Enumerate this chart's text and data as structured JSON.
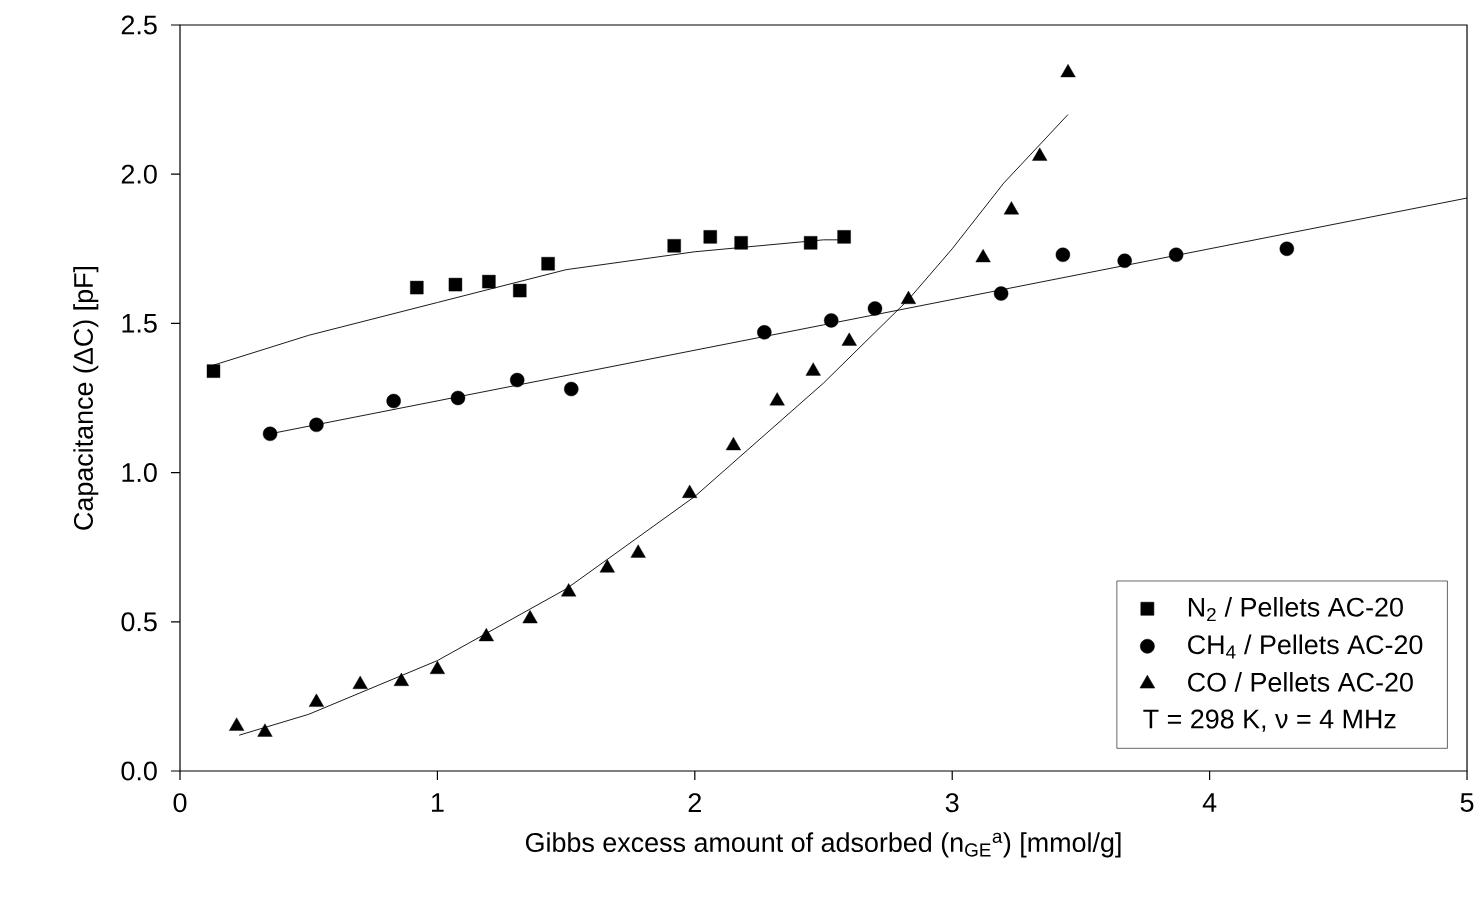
{
  "chart_data": {
    "type": "scatter",
    "xlabel": "Gibbs excess amount of adsorbed  (n$_{GE}$$^{a}$)  [mmol/g]",
    "ylabel": "Capacitance  (ΔC)  [pF]",
    "xlim": [
      0,
      5
    ],
    "ylim": [
      0,
      2.5
    ],
    "xticks": [
      0,
      1,
      2,
      3,
      4,
      5
    ],
    "yticks": [
      {
        "value": 0,
        "label": "0.0"
      },
      {
        "value": 0.5,
        "label": "0.5"
      },
      {
        "value": 1,
        "label": "1.0"
      },
      {
        "value": 1.5,
        "label": "1.5"
      },
      {
        "value": 2,
        "label": "2.0"
      },
      {
        "value": 2.5,
        "label": "2.5"
      }
    ],
    "grid": false,
    "legend": "bottom right",
    "annotations": [
      "T = 298 K,  ν = 4 MHz"
    ],
    "series": [
      {
        "name": "N$_{2}$  / Pellets AC-20",
        "marker": "square",
        "color": "#000000",
        "x": [
          0.13,
          0.92,
          1.07,
          1.2,
          1.32,
          1.43,
          1.92,
          2.06,
          2.18,
          2.45,
          2.58
        ],
        "values": [
          1.34,
          1.62,
          1.63,
          1.64,
          1.61,
          1.7,
          1.76,
          1.79,
          1.77,
          1.77,
          1.79
        ]
      },
      {
        "name": "CH$_{4}$ / Pellets AC-20",
        "marker": "circle",
        "color": "#000000",
        "x": [
          0.35,
          0.53,
          0.83,
          1.08,
          1.31,
          1.52,
          2.27,
          2.53,
          2.7,
          3.19,
          3.43,
          3.67,
          3.87,
          4.3
        ],
        "values": [
          1.13,
          1.16,
          1.24,
          1.25,
          1.31,
          1.28,
          1.47,
          1.51,
          1.55,
          1.6,
          1.73,
          1.71,
          1.73,
          1.75
        ]
      },
      {
        "name": "CO  / Pellets AC-20",
        "marker": "triangle",
        "color": "#000000",
        "x": [
          0.22,
          0.33,
          0.53,
          0.7,
          0.86,
          1.0,
          1.19,
          1.36,
          1.51,
          1.66,
          1.78,
          1.98,
          2.15,
          2.32,
          2.46,
          2.6,
          2.83,
          3.12,
          3.23,
          3.34,
          3.45
        ],
        "values": [
          0.15,
          0.13,
          0.23,
          0.29,
          0.3,
          0.34,
          0.45,
          0.51,
          0.6,
          0.68,
          0.73,
          0.93,
          1.09,
          1.24,
          1.34,
          1.44,
          1.58,
          1.72,
          1.88,
          2.06,
          2.34
        ]
      },
      {
        "type": "line",
        "marker": "none",
        "line_style": "solid",
        "color": "#000000",
        "x": [
          0.13,
          0.5,
          1.0,
          1.5,
          2.0,
          2.5,
          2.58
        ],
        "values": [
          1.36,
          1.46,
          1.57,
          1.68,
          1.74,
          1.78,
          1.78
        ]
      },
      {
        "type": "line",
        "marker": "none",
        "line_style": "solid",
        "color": "#000000",
        "x": [
          0.35,
          2.5,
          5.0
        ],
        "values": [
          1.13,
          1.495,
          1.92
        ]
      },
      {
        "type": "line",
        "marker": "none",
        "line_style": "solid",
        "color": "#000000",
        "x": [
          0.23,
          0.5,
          1.0,
          1.5,
          2.0,
          2.5,
          2.83,
          3.0,
          3.2,
          3.45
        ],
        "values": [
          0.12,
          0.19,
          0.37,
          0.61,
          0.92,
          1.3,
          1.58,
          1.75,
          1.97,
          2.2
        ]
      }
    ]
  }
}
